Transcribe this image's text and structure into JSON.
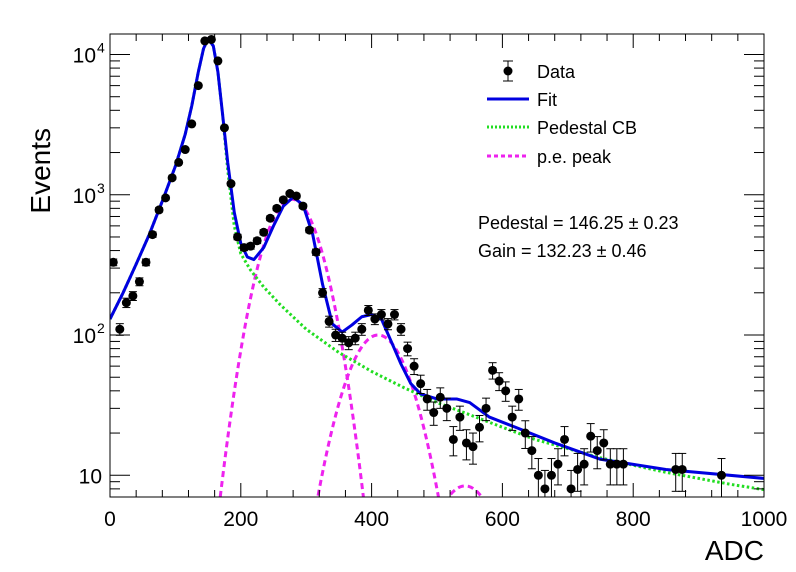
{
  "chart_data": {
    "type": "scatter",
    "xlabel": "ADC",
    "ylabel": "Events",
    "xlim": [
      0,
      1000
    ],
    "ylim": [
      7,
      14000
    ],
    "yscale": "log",
    "x_ticks": [
      0,
      200,
      400,
      600,
      800,
      1000
    ],
    "x_tick_labels": [
      "0",
      "200",
      "400",
      "600",
      "800",
      "1000"
    ],
    "y_ticks": [
      10,
      100,
      1000,
      10000
    ],
    "y_tick_labels": [
      {
        "base": "10",
        "exp": ""
      },
      {
        "base": "10",
        "exp": "2"
      },
      {
        "base": "10",
        "exp": "3"
      },
      {
        "base": "10",
        "exp": "4"
      }
    ],
    "legend": {
      "position": "top-right",
      "entries": [
        {
          "label": "Data",
          "style": "marker",
          "color": "#000000"
        },
        {
          "label": "Fit",
          "style": "solid",
          "color": "#0000e0"
        },
        {
          "label": "Pedestal CB",
          "style": "dotted",
          "color": "#22dd22"
        },
        {
          "label": "p.e. peak",
          "style": "dashed",
          "color": "#ee22ee"
        }
      ]
    },
    "annotations": [
      {
        "text": "Pedestal = 146.25",
        "pm": "0.23"
      },
      {
        "text": "Gain = 132.23",
        "pm": "0.46"
      }
    ],
    "series": [
      {
        "name": "Data",
        "kind": "points",
        "color": "#000000",
        "points": [
          {
            "x": 5,
            "y": 330
          },
          {
            "x": 15,
            "y": 110
          },
          {
            "x": 25,
            "y": 170
          },
          {
            "x": 35,
            "y": 190
          },
          {
            "x": 45,
            "y": 240
          },
          {
            "x": 55,
            "y": 330
          },
          {
            "x": 65,
            "y": 520
          },
          {
            "x": 75,
            "y": 780
          },
          {
            "x": 85,
            "y": 950
          },
          {
            "x": 95,
            "y": 1320
          },
          {
            "x": 105,
            "y": 1700
          },
          {
            "x": 115,
            "y": 2100
          },
          {
            "x": 125,
            "y": 3200
          },
          {
            "x": 135,
            "y": 6000
          },
          {
            "x": 145,
            "y": 12500
          },
          {
            "x": 155,
            "y": 12800
          },
          {
            "x": 165,
            "y": 9000
          },
          {
            "x": 175,
            "y": 3000
          },
          {
            "x": 185,
            "y": 1200
          },
          {
            "x": 195,
            "y": 500
          },
          {
            "x": 205,
            "y": 420
          },
          {
            "x": 215,
            "y": 430
          },
          {
            "x": 225,
            "y": 470
          },
          {
            "x": 235,
            "y": 540
          },
          {
            "x": 245,
            "y": 680
          },
          {
            "x": 255,
            "y": 800
          },
          {
            "x": 265,
            "y": 920
          },
          {
            "x": 275,
            "y": 1020
          },
          {
            "x": 285,
            "y": 980
          },
          {
            "x": 295,
            "y": 830
          },
          {
            "x": 305,
            "y": 560
          },
          {
            "x": 315,
            "y": 390
          },
          {
            "x": 325,
            "y": 200
          },
          {
            "x": 335,
            "y": 125
          },
          {
            "x": 345,
            "y": 100
          },
          {
            "x": 355,
            "y": 95
          },
          {
            "x": 365,
            "y": 88
          },
          {
            "x": 375,
            "y": 95
          },
          {
            "x": 385,
            "y": 110
          },
          {
            "x": 395,
            "y": 150
          },
          {
            "x": 405,
            "y": 130
          },
          {
            "x": 415,
            "y": 140
          },
          {
            "x": 425,
            "y": 120
          },
          {
            "x": 435,
            "y": 140
          },
          {
            "x": 445,
            "y": 110
          },
          {
            "x": 455,
            "y": 80
          },
          {
            "x": 465,
            "y": 60
          },
          {
            "x": 475,
            "y": 45
          },
          {
            "x": 485,
            "y": 35
          },
          {
            "x": 495,
            "y": 28
          },
          {
            "x": 505,
            "y": 36
          },
          {
            "x": 515,
            "y": 30
          },
          {
            "x": 525,
            "y": 18
          },
          {
            "x": 535,
            "y": 26
          },
          {
            "x": 545,
            "y": 17
          },
          {
            "x": 555,
            "y": 16
          },
          {
            "x": 565,
            "y": 22
          },
          {
            "x": 575,
            "y": 30
          },
          {
            "x": 585,
            "y": 56
          },
          {
            "x": 595,
            "y": 47
          },
          {
            "x": 605,
            "y": 40
          },
          {
            "x": 615,
            "y": 26
          },
          {
            "x": 625,
            "y": 35
          },
          {
            "x": 635,
            "y": 20
          },
          {
            "x": 645,
            "y": 15
          },
          {
            "x": 655,
            "y": 10
          },
          {
            "x": 665,
            "y": 8
          },
          {
            "x": 675,
            "y": 10
          },
          {
            "x": 685,
            "y": 12
          },
          {
            "x": 695,
            "y": 18
          },
          {
            "x": 705,
            "y": 8
          },
          {
            "x": 715,
            "y": 11
          },
          {
            "x": 725,
            "y": 12
          },
          {
            "x": 735,
            "y": 19
          },
          {
            "x": 745,
            "y": 15
          },
          {
            "x": 755,
            "y": 17
          },
          {
            "x": 765,
            "y": 12
          },
          {
            "x": 775,
            "y": 12
          },
          {
            "x": 785,
            "y": 12
          },
          {
            "x": 865,
            "y": 11
          },
          {
            "x": 875,
            "y": 11
          },
          {
            "x": 935,
            "y": 10
          }
        ]
      },
      {
        "name": "Fit",
        "kind": "line",
        "color": "#0000e0",
        "points": [
          {
            "x": 0,
            "y": 130
          },
          {
            "x": 20,
            "y": 200
          },
          {
            "x": 40,
            "y": 320
          },
          {
            "x": 60,
            "y": 520
          },
          {
            "x": 80,
            "y": 900
          },
          {
            "x": 100,
            "y": 1600
          },
          {
            "x": 115,
            "y": 2700
          },
          {
            "x": 125,
            "y": 4300
          },
          {
            "x": 135,
            "y": 7500
          },
          {
            "x": 143,
            "y": 11000
          },
          {
            "x": 150,
            "y": 13000
          },
          {
            "x": 158,
            "y": 11500
          },
          {
            "x": 165,
            "y": 7500
          },
          {
            "x": 172,
            "y": 3800
          },
          {
            "x": 180,
            "y": 1700
          },
          {
            "x": 190,
            "y": 750
          },
          {
            "x": 200,
            "y": 450
          },
          {
            "x": 210,
            "y": 360
          },
          {
            "x": 220,
            "y": 345
          },
          {
            "x": 235,
            "y": 420
          },
          {
            "x": 250,
            "y": 600
          },
          {
            "x": 265,
            "y": 830
          },
          {
            "x": 280,
            "y": 960
          },
          {
            "x": 295,
            "y": 850
          },
          {
            "x": 310,
            "y": 520
          },
          {
            "x": 325,
            "y": 230
          },
          {
            "x": 340,
            "y": 120
          },
          {
            "x": 355,
            "y": 105
          },
          {
            "x": 370,
            "y": 118
          },
          {
            "x": 385,
            "y": 135
          },
          {
            "x": 400,
            "y": 140
          },
          {
            "x": 415,
            "y": 130
          },
          {
            "x": 430,
            "y": 90
          },
          {
            "x": 445,
            "y": 62
          },
          {
            "x": 460,
            "y": 45
          },
          {
            "x": 475,
            "y": 38
          },
          {
            "x": 500,
            "y": 35
          },
          {
            "x": 530,
            "y": 35
          },
          {
            "x": 550,
            "y": 33
          },
          {
            "x": 580,
            "y": 26
          },
          {
            "x": 620,
            "y": 22
          },
          {
            "x": 680,
            "y": 17
          },
          {
            "x": 750,
            "y": 13
          },
          {
            "x": 850,
            "y": 11
          },
          {
            "x": 1000,
            "y": 9.5
          }
        ]
      },
      {
        "name": "Pedestal CB",
        "kind": "line",
        "color": "#22dd22",
        "points": [
          {
            "x": 0,
            "y": 130
          },
          {
            "x": 20,
            "y": 200
          },
          {
            "x": 40,
            "y": 320
          },
          {
            "x": 60,
            "y": 520
          },
          {
            "x": 80,
            "y": 900
          },
          {
            "x": 100,
            "y": 1600
          },
          {
            "x": 115,
            "y": 2700
          },
          {
            "x": 125,
            "y": 4300
          },
          {
            "x": 135,
            "y": 7500
          },
          {
            "x": 143,
            "y": 11000
          },
          {
            "x": 150,
            "y": 13000
          },
          {
            "x": 158,
            "y": 11500
          },
          {
            "x": 165,
            "y": 7500
          },
          {
            "x": 172,
            "y": 3800
          },
          {
            "x": 180,
            "y": 1500
          },
          {
            "x": 190,
            "y": 600
          },
          {
            "x": 200,
            "y": 380
          },
          {
            "x": 215,
            "y": 290
          },
          {
            "x": 235,
            "y": 220
          },
          {
            "x": 260,
            "y": 165
          },
          {
            "x": 300,
            "y": 110
          },
          {
            "x": 350,
            "y": 75
          },
          {
            "x": 400,
            "y": 55
          },
          {
            "x": 450,
            "y": 42
          },
          {
            "x": 500,
            "y": 33
          },
          {
            "x": 550,
            "y": 27
          },
          {
            "x": 600,
            "y": 22
          },
          {
            "x": 650,
            "y": 18
          },
          {
            "x": 700,
            "y": 15.5
          },
          {
            "x": 750,
            "y": 13.3
          },
          {
            "x": 800,
            "y": 11.8
          },
          {
            "x": 850,
            "y": 10.5
          },
          {
            "x": 900,
            "y": 9.5
          },
          {
            "x": 950,
            "y": 8.6
          },
          {
            "x": 1000,
            "y": 7.9
          }
        ]
      },
      {
        "name": "p.e. peak",
        "kind": "curves",
        "color": "#ee22ee",
        "curves": [
          {
            "mean": 278,
            "sigma": 35,
            "amp": 930
          },
          {
            "mean": 410,
            "sigma": 40,
            "amp": 100
          },
          {
            "mean": 543,
            "sigma": 42,
            "amp": 8.4
          }
        ]
      }
    ]
  }
}
